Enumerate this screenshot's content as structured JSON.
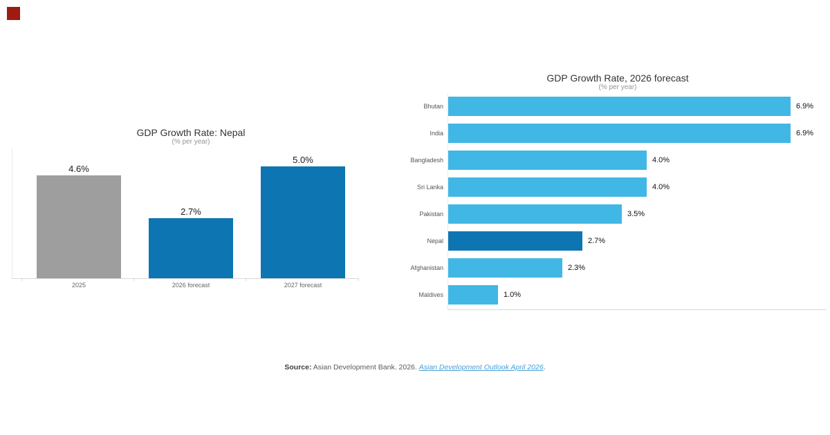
{
  "brand": {
    "color": "#9e1b10"
  },
  "chart_data": [
    {
      "type": "bar",
      "orientation": "vertical",
      "title": "GDP Growth Rate: Nepal",
      "subtitle": "(% per year)",
      "categories": [
        "2025",
        "2026 forecast",
        "2027 forecast"
      ],
      "values": [
        4.6,
        2.7,
        5.0
      ],
      "value_labels": [
        "4.6%",
        "2.7%",
        "5.0%"
      ],
      "bar_colors": [
        "#9e9e9e",
        "#0d76b2",
        "#0d76b2"
      ],
      "ylim": [
        0,
        5
      ],
      "grid": false,
      "legend": false
    },
    {
      "type": "bar",
      "orientation": "horizontal",
      "title": "GDP Growth Rate, 2026 forecast",
      "subtitle": "(% per year)",
      "categories": [
        "Bhutan",
        "India",
        "Bangladesh",
        "Sri Lanka",
        "Pakistan",
        "Nepal",
        "Afghanistan",
        "Maldives"
      ],
      "values": [
        6.9,
        6.9,
        4.0,
        4.0,
        3.5,
        2.7,
        2.3,
        1.0
      ],
      "value_labels": [
        "6.9%",
        "6.9%",
        "4.0%",
        "4.0%",
        "3.5%",
        "2.7%",
        "2.3%",
        "1.0%"
      ],
      "bar_color": "#40b7e5",
      "highlight_category": "Nepal",
      "highlight_color": "#0d76b2",
      "xlim": [
        0,
        7
      ],
      "grid": false,
      "legend": false
    }
  ],
  "source": {
    "label": "Source:",
    "text": "Asian Development Bank. 2026.",
    "link_text": "Asian Development Outlook April 2026",
    "suffix": "."
  }
}
